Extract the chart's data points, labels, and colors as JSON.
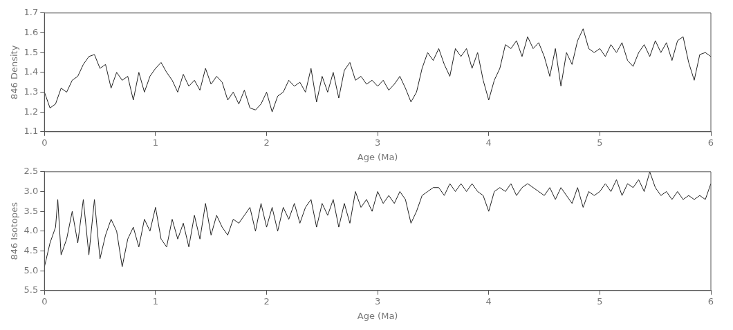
{
  "chart_data": [
    {
      "type": "line",
      "xlabel": "Age (Ma)",
      "ylabel": "846 Density",
      "xlim": [
        0,
        6
      ],
      "xticks": [
        0,
        1,
        2,
        3,
        4,
        5,
        6
      ],
      "ylim": [
        1.1,
        1.7
      ],
      "yticks": [
        1.1,
        1.2,
        1.3,
        1.4,
        1.5,
        1.6,
        1.7
      ],
      "grid": false,
      "legend": false,
      "marker": "none",
      "line_style": "solid",
      "series": [
        {
          "color": "#222222",
          "x": [
            0,
            0.05,
            0.1,
            0.15,
            0.2,
            0.25,
            0.3,
            0.35,
            0.4,
            0.45,
            0.5,
            0.55,
            0.6,
            0.65,
            0.7,
            0.75,
            0.8,
            0.85,
            0.9,
            0.95,
            1,
            1.05,
            1.1,
            1.15,
            1.2,
            1.25,
            1.3,
            1.35,
            1.4,
            1.45,
            1.5,
            1.55,
            1.6,
            1.65,
            1.7,
            1.75,
            1.8,
            1.85,
            1.9,
            1.95,
            2,
            2.05,
            2.1,
            2.15,
            2.2,
            2.25,
            2.3,
            2.35,
            2.4,
            2.45,
            2.5,
            2.55,
            2.6,
            2.65,
            2.7,
            2.75,
            2.8,
            2.85,
            2.9,
            2.95,
            3,
            3.05,
            3.1,
            3.15,
            3.2,
            3.25,
            3.3,
            3.35,
            3.4,
            3.45,
            3.5,
            3.55,
            3.6,
            3.65,
            3.7,
            3.75,
            3.8,
            3.85,
            3.9,
            3.95,
            4,
            4.05,
            4.1,
            4.15,
            4.2,
            4.25,
            4.3,
            4.35,
            4.4,
            4.45,
            4.5,
            4.55,
            4.6,
            4.65,
            4.7,
            4.75,
            4.8,
            4.85,
            4.9,
            4.95,
            5,
            5.05,
            5.1,
            5.15,
            5.2,
            5.25,
            5.3,
            5.35,
            5.4,
            5.45,
            5.5,
            5.55,
            5.6,
            5.65,
            5.7,
            5.75,
            5.8,
            5.85,
            5.9,
            5.95,
            6
          ],
          "values": [
            1.3,
            1.22,
            1.24,
            1.32,
            1.3,
            1.36,
            1.38,
            1.44,
            1.48,
            1.49,
            1.42,
            1.44,
            1.32,
            1.4,
            1.36,
            1.38,
            1.26,
            1.4,
            1.3,
            1.38,
            1.42,
            1.45,
            1.4,
            1.36,
            1.3,
            1.39,
            1.33,
            1.36,
            1.31,
            1.42,
            1.34,
            1.38,
            1.35,
            1.26,
            1.3,
            1.24,
            1.31,
            1.22,
            1.21,
            1.24,
            1.3,
            1.2,
            1.28,
            1.3,
            1.36,
            1.33,
            1.35,
            1.3,
            1.42,
            1.25,
            1.38,
            1.3,
            1.4,
            1.27,
            1.41,
            1.45,
            1.36,
            1.38,
            1.34,
            1.36,
            1.33,
            1.36,
            1.31,
            1.34,
            1.38,
            1.32,
            1.25,
            1.3,
            1.42,
            1.5,
            1.46,
            1.52,
            1.44,
            1.38,
            1.52,
            1.48,
            1.52,
            1.42,
            1.5,
            1.36,
            1.26,
            1.36,
            1.42,
            1.54,
            1.52,
            1.56,
            1.48,
            1.58,
            1.52,
            1.55,
            1.48,
            1.38,
            1.52,
            1.33,
            1.5,
            1.44,
            1.56,
            1.62,
            1.52,
            1.5,
            1.52,
            1.48,
            1.54,
            1.5,
            1.55,
            1.46,
            1.43,
            1.5,
            1.54,
            1.48,
            1.56,
            1.5,
            1.55,
            1.46,
            1.56,
            1.58,
            1.45,
            1.36,
            1.49,
            1.5,
            1.48
          ]
        }
      ]
    },
    {
      "type": "line",
      "xlabel": "Age (Ma)",
      "ylabel": "846 Isotopes",
      "xlim": [
        0,
        6
      ],
      "xticks": [
        0,
        1,
        2,
        3,
        4,
        5,
        6
      ],
      "ylim": [
        5.5,
        2.5
      ],
      "yticks": [
        {
          "value": 2.5,
          "label": "2.5"
        },
        {
          "value": 3,
          "label": "3.0"
        },
        {
          "value": 3.5,
          "label": "3.5"
        },
        {
          "value": 4,
          "label": "4.0"
        },
        {
          "value": 4.5,
          "label": "4.5"
        },
        {
          "value": 5,
          "label": "5.0"
        },
        {
          "value": 5.5,
          "label": "5.5"
        }
      ],
      "grid": false,
      "legend": false,
      "marker": "none",
      "line_style": "solid",
      "series": [
        {
          "color": "#222222",
          "x": [
            0,
            0.05,
            0.1,
            0.12,
            0.15,
            0.2,
            0.25,
            0.3,
            0.35,
            0.4,
            0.45,
            0.5,
            0.55,
            0.6,
            0.65,
            0.7,
            0.75,
            0.8,
            0.85,
            0.9,
            0.95,
            1,
            1.05,
            1.1,
            1.15,
            1.2,
            1.25,
            1.3,
            1.35,
            1.4,
            1.45,
            1.5,
            1.55,
            1.6,
            1.65,
            1.7,
            1.75,
            1.8,
            1.85,
            1.9,
            1.95,
            2,
            2.05,
            2.1,
            2.15,
            2.2,
            2.25,
            2.3,
            2.35,
            2.4,
            2.45,
            2.5,
            2.55,
            2.6,
            2.65,
            2.7,
            2.75,
            2.8,
            2.85,
            2.9,
            2.95,
            3,
            3.05,
            3.1,
            3.15,
            3.2,
            3.25,
            3.3,
            3.35,
            3.4,
            3.45,
            3.5,
            3.55,
            3.6,
            3.65,
            3.7,
            3.75,
            3.8,
            3.85,
            3.9,
            3.95,
            4,
            4.05,
            4.1,
            4.15,
            4.2,
            4.25,
            4.3,
            4.35,
            4.4,
            4.45,
            4.5,
            4.55,
            4.6,
            4.65,
            4.7,
            4.75,
            4.8,
            4.85,
            4.9,
            4.95,
            5,
            5.05,
            5.1,
            5.15,
            5.2,
            5.25,
            5.3,
            5.35,
            5.4,
            5.45,
            5.5,
            5.55,
            5.6,
            5.65,
            5.7,
            5.75,
            5.8,
            5.85,
            5.9,
            5.95,
            6
          ],
          "values": [
            4.9,
            4.3,
            3.9,
            3.2,
            4.6,
            4.2,
            3.5,
            4.3,
            3.2,
            4.6,
            3.2,
            4.7,
            4.1,
            3.7,
            4,
            4.9,
            4.2,
            3.9,
            4.4,
            3.7,
            4,
            3.4,
            4.2,
            4.4,
            3.7,
            4.2,
            3.8,
            4.4,
            3.6,
            4.2,
            3.3,
            4.1,
            3.6,
            3.9,
            4.1,
            3.7,
            3.8,
            3.6,
            3.4,
            4,
            3.3,
            3.9,
            3.4,
            4,
            3.4,
            3.7,
            3.3,
            3.8,
            3.4,
            3.2,
            3.9,
            3.3,
            3.6,
            3.2,
            3.9,
            3.3,
            3.8,
            3,
            3.4,
            3.2,
            3.5,
            3,
            3.3,
            3.1,
            3.3,
            3,
            3.2,
            3.8,
            3.5,
            3.1,
            3,
            2.9,
            2.9,
            3.1,
            2.8,
            3,
            2.8,
            3,
            2.8,
            3,
            3.1,
            3.5,
            3,
            2.9,
            3,
            2.8,
            3.1,
            2.9,
            2.8,
            2.9,
            3,
            3.1,
            2.9,
            3.2,
            2.9,
            3.1,
            3.3,
            2.9,
            3.4,
            3,
            3.1,
            3,
            2.8,
            3,
            2.7,
            3.1,
            2.8,
            2.9,
            2.7,
            3,
            2.5,
            2.9,
            3.1,
            3,
            3.2,
            3,
            3.2,
            3.1,
            3.2,
            3.1,
            3.2,
            2.8
          ]
        }
      ]
    }
  ]
}
